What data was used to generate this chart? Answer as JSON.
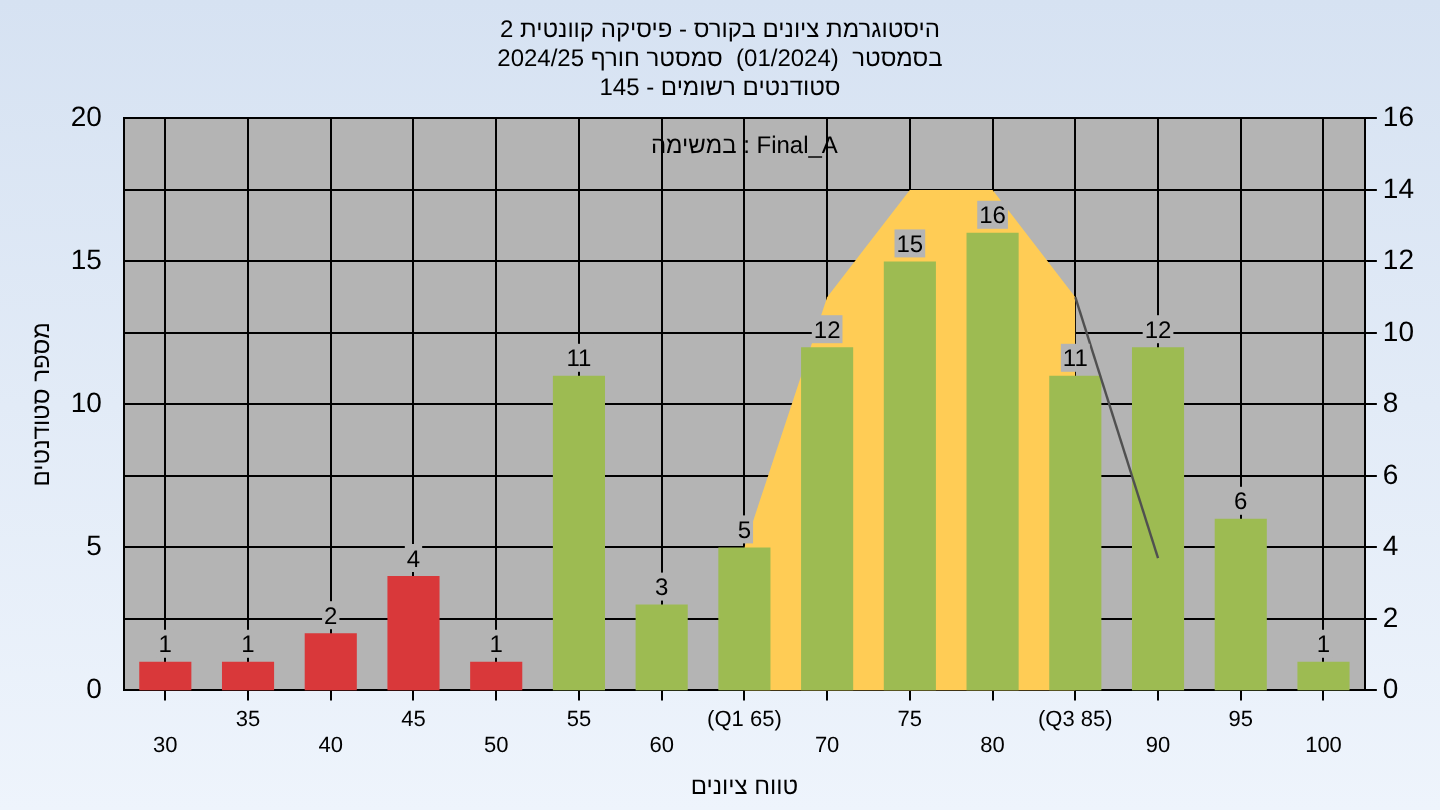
{
  "chart_data": {
    "type": "bar",
    "title": "היסטוגרמת ציונים בקורס - פיסיקה קוונטית 2",
    "subtitle": "בסמסטר  (01/2024)  סמסטר חורף 2024/25\nסטודנטים רשומים - 145",
    "xlabel": "טווח ציונים",
    "ylabel": "מספר סטודנטים",
    "annotations": [
      "במשימה : Final_A"
    ],
    "categories": [
      "30",
      "35",
      "40",
      "45",
      "50",
      "55",
      "60",
      "(Q1 65)",
      "70",
      "75",
      "80",
      "(Q3 85)",
      "90",
      "95",
      "100"
    ],
    "series": [
      {
        "values": [
          1,
          1,
          2,
          4,
          1,
          11,
          3,
          5,
          12,
          15,
          16,
          11,
          12,
          6,
          1
        ],
        "value_labels": [
          "1",
          "1",
          "2",
          "4",
          "1",
          "11",
          "3",
          "5",
          "12",
          "15",
          "16",
          "11",
          "12",
          "6",
          "1"
        ],
        "colors": [
          "#d9383a",
          "#d9383a",
          "#d9383a",
          "#d9383a",
          "#d9383a",
          "#9dbb52",
          "#9dbb52",
          "#9dbb52",
          "#9dbb52",
          "#9dbb52",
          "#9dbb52",
          "#9dbb52",
          "#9dbb52",
          "#9dbb52",
          "#9dbb52"
        ]
      },
      {
        "type": "area",
        "axis": "y2",
        "color": "#ffcc55",
        "values": [
          null,
          null,
          null,
          null,
          null,
          null,
          null,
          4,
          11,
          14,
          14,
          11,
          null,
          null,
          null
        ]
      },
      {
        "type": "line",
        "axis": "y2",
        "color": "#505050",
        "values": [
          null,
          null,
          null,
          null,
          null,
          null,
          null,
          null,
          null,
          null,
          null,
          11,
          3.7,
          null,
          null
        ]
      }
    ],
    "ylim": [
      0,
      20
    ],
    "yticks": [
      0,
      5,
      10,
      15,
      20
    ],
    "y2lim": [
      0,
      16
    ],
    "y2ticks": [
      0,
      2,
      4,
      6,
      8,
      10,
      12,
      14,
      16
    ],
    "grid": true,
    "legend": false
  }
}
